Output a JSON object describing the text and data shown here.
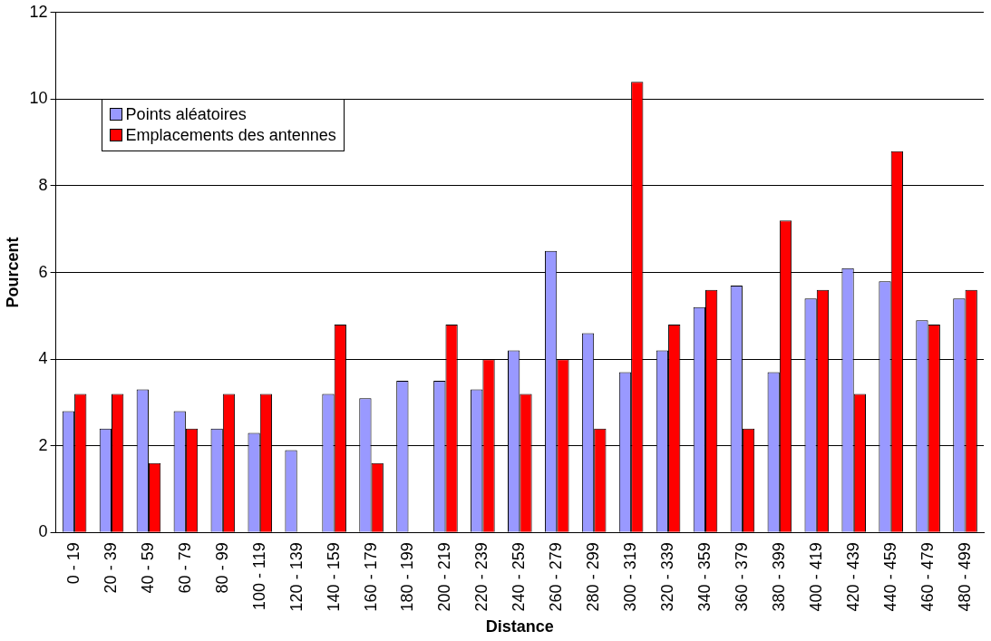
{
  "chart_data": {
    "type": "bar",
    "xlabel": "Distance",
    "ylabel": "Pourcent",
    "categories": [
      "0 - 19",
      "20 - 39",
      "40 - 59",
      "60 - 79",
      "80 - 99",
      "100 - 119",
      "120 - 139",
      "140 - 159",
      "160 - 179",
      "180 - 199",
      "200 - 219",
      "220 - 239",
      "240 - 259",
      "260 - 279",
      "280 - 299",
      "300 - 319",
      "320 - 339",
      "340 - 359",
      "360 - 379",
      "380 - 399",
      "400 - 419",
      "420 - 439",
      "440 - 459",
      "460 - 479",
      "480 - 499"
    ],
    "series": [
      {
        "name": "Points aléatoires",
        "color": "#9999ff",
        "values": [
          2.8,
          2.4,
          3.3,
          2.8,
          2.4,
          2.3,
          1.9,
          3.2,
          3.1,
          3.5,
          3.5,
          3.3,
          4.2,
          6.5,
          4.6,
          3.7,
          4.2,
          5.2,
          5.7,
          3.7,
          5.4,
          6.1,
          5.8,
          4.9,
          5.4
        ]
      },
      {
        "name": "Emplacements des antennes",
        "color": "#ff0000",
        "values": [
          3.2,
          3.2,
          1.6,
          2.4,
          3.2,
          3.2,
          0,
          4.8,
          1.6,
          0,
          4.8,
          4.0,
          3.2,
          4.0,
          2.4,
          10.4,
          4.8,
          5.6,
          2.4,
          7.2,
          5.6,
          3.2,
          8.8,
          4.8,
          5.6
        ]
      }
    ],
    "ylim": [
      0,
      12
    ],
    "yticks": [
      0,
      2,
      4,
      6,
      8,
      10,
      12
    ],
    "grid": "y",
    "legend": "top left"
  }
}
